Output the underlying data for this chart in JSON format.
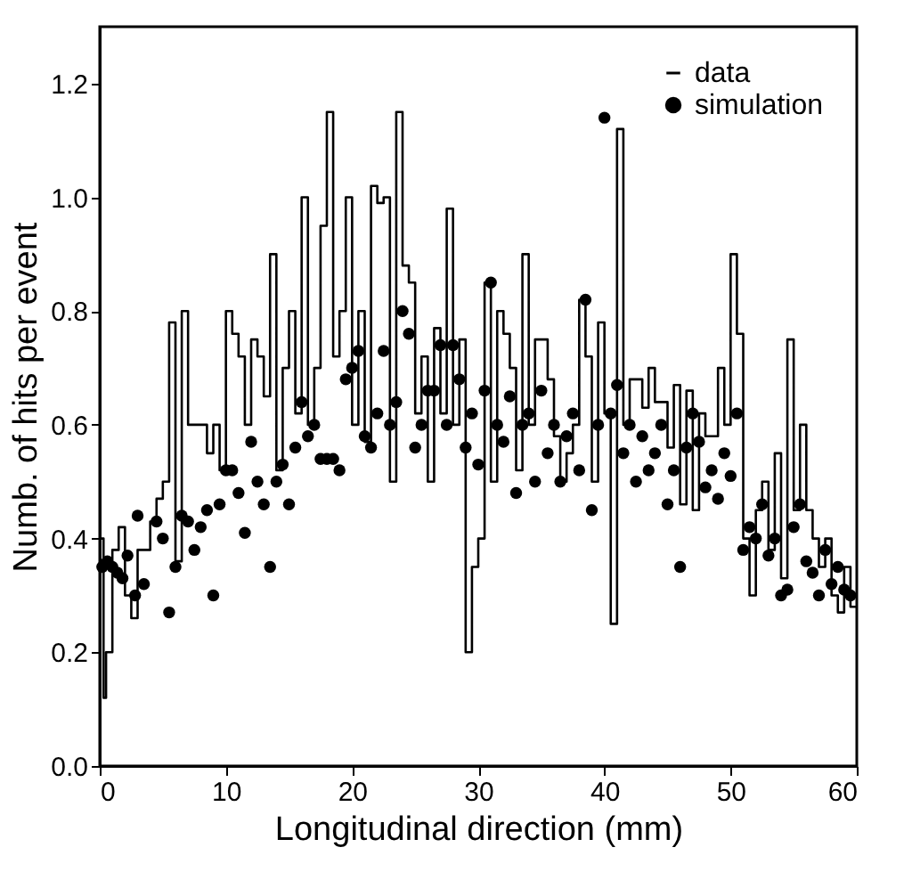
{
  "chart_data": {
    "type": "step",
    "xlabel": "Longitudinal direction (mm)",
    "ylabel": "Numb. of hits per event",
    "xlim": [
      0,
      60
    ],
    "xticks": [
      0,
      10,
      20,
      30,
      40,
      50,
      60
    ],
    "ylim": [
      0.0,
      1.3
    ],
    "yticks": [
      {
        "value": 0,
        "label": "0.0"
      },
      0.2,
      0.4,
      0.6,
      0.8,
      {
        "value": 1,
        "label": "1.0"
      },
      1.2
    ],
    "grid": false,
    "legend": "top right",
    "series": [
      {
        "name": "data",
        "color": "#000000",
        "line_style": "solid",
        "marker": "none",
        "x": [
          0,
          0.3,
          0.5,
          1,
          1.5,
          2,
          2.5,
          3,
          4,
          4.5,
          5,
          5.5,
          6,
          6.5,
          7,
          8.5,
          9,
          9.5,
          10,
          10.5,
          11,
          11.5,
          12,
          12.5,
          13,
          13.5,
          14,
          14.5,
          15,
          15.5,
          16,
          16.5,
          17,
          17.5,
          18,
          18.5,
          19,
          19.5,
          20,
          20.5,
          21,
          21.5,
          22,
          22.5,
          23,
          23.5,
          24,
          24.5,
          25,
          25.5,
          26,
          26.5,
          27,
          27.5,
          28,
          28.5,
          29,
          29.5,
          30,
          30.5,
          31,
          31.5,
          32,
          32.5,
          33,
          33.5,
          34,
          34.5,
          35,
          35.5,
          36,
          36.5,
          37,
          37.5,
          38,
          38.5,
          39,
          39.5,
          40,
          40.5,
          41,
          41.5,
          42,
          43,
          43.5,
          44,
          45,
          45.5,
          46,
          46.5,
          47,
          47.5,
          48,
          49,
          49.5,
          50,
          50.5,
          51,
          51.5,
          52,
          52.5,
          53,
          53.5,
          54,
          54.5,
          55,
          55.5,
          56,
          56.5,
          57,
          57.5,
          58,
          58.5,
          59,
          59.5,
          60
        ],
        "values": [
          0.4,
          0.12,
          0.2,
          0.38,
          0.42,
          0.3,
          0.26,
          0.38,
          0.43,
          0.47,
          0.5,
          0.78,
          0.36,
          0.8,
          0.6,
          0.55,
          0.6,
          0.52,
          0.8,
          0.76,
          0.72,
          0.6,
          0.75,
          0.72,
          0.65,
          0.9,
          0.52,
          0.7,
          0.8,
          0.62,
          1.0,
          0.6,
          0.7,
          0.95,
          1.15,
          0.72,
          0.8,
          1.0,
          0.6,
          0.8,
          0.57,
          1.02,
          0.99,
          1.0,
          0.5,
          1.15,
          0.88,
          0.85,
          0.62,
          0.72,
          0.5,
          0.77,
          0.62,
          0.98,
          0.6,
          0.75,
          0.2,
          0.35,
          0.4,
          0.85,
          0.5,
          0.8,
          0.76,
          0.7,
          0.52,
          0.9,
          0.6,
          0.75,
          0.75,
          0.68,
          0.58,
          0.5,
          0.55,
          0.6,
          0.82,
          0.72,
          0.5,
          0.78,
          0.62,
          0.25,
          1.12,
          0.6,
          0.68,
          0.63,
          0.7,
          0.64,
          0.56,
          0.67,
          0.46,
          0.66,
          0.45,
          0.62,
          0.58,
          0.7,
          0.6,
          0.9,
          0.76,
          0.4,
          0.3,
          0.45,
          0.5,
          0.38,
          0.55,
          0.33,
          0.75,
          0.45,
          0.6,
          0.45,
          0.4,
          0.35,
          0.4,
          0.3,
          0.27,
          0.35,
          0.28,
          0.28
        ]
      },
      {
        "name": "simulation",
        "type": "scatter",
        "color": "#000000",
        "marker": "circle",
        "x": [
          0.2,
          0.6,
          1,
          1.4,
          1.8,
          2.2,
          2.8,
          3,
          3.5,
          4.5,
          5,
          5.5,
          6,
          6.5,
          7,
          7.5,
          8,
          8.5,
          9,
          9.5,
          10,
          10.5,
          11,
          11.5,
          12,
          12.5,
          13,
          13.5,
          14,
          14.5,
          15,
          15.5,
          16,
          16.5,
          17,
          17.5,
          18,
          18.5,
          19,
          19.5,
          20,
          20.5,
          21,
          21.5,
          22,
          22.5,
          23,
          23.5,
          24,
          24.5,
          25,
          25.5,
          26,
          26.5,
          27,
          27.5,
          28,
          28.5,
          29,
          29.5,
          30,
          30.5,
          31,
          31.5,
          32,
          32.5,
          33,
          33.5,
          34,
          34.5,
          35,
          35.5,
          36,
          36.5,
          37,
          37.5,
          38,
          38.5,
          39,
          39.5,
          40,
          40.5,
          41,
          41.5,
          42,
          42.5,
          43,
          43.5,
          44,
          44.5,
          45,
          45.5,
          46,
          46.5,
          47,
          47.5,
          48,
          48.5,
          49,
          49.5,
          50,
          50.5,
          51,
          51.5,
          52,
          52.5,
          53,
          53.5,
          54,
          54.5,
          55,
          55.5,
          56,
          56.5,
          57,
          57.5,
          58,
          58.5,
          59,
          59.5
        ],
        "values": [
          0.35,
          0.36,
          0.35,
          0.34,
          0.33,
          0.37,
          0.3,
          0.44,
          0.32,
          0.43,
          0.4,
          0.27,
          0.35,
          0.44,
          0.43,
          0.38,
          0.42,
          0.45,
          0.3,
          0.46,
          0.52,
          0.52,
          0.48,
          0.41,
          0.57,
          0.5,
          0.46,
          0.35,
          0.5,
          0.53,
          0.46,
          0.56,
          0.64,
          0.58,
          0.6,
          0.54,
          0.54,
          0.54,
          0.52,
          0.68,
          0.7,
          0.73,
          0.58,
          0.56,
          0.62,
          0.73,
          0.6,
          0.64,
          0.8,
          0.76,
          0.56,
          0.6,
          0.66,
          0.66,
          0.74,
          0.6,
          0.74,
          0.68,
          0.56,
          0.62,
          0.53,
          0.66,
          0.85,
          0.6,
          0.57,
          0.65,
          0.48,
          0.6,
          0.62,
          0.5,
          0.66,
          0.55,
          0.6,
          0.5,
          0.58,
          0.62,
          0.52,
          0.82,
          0.45,
          0.6,
          1.14,
          0.62,
          0.67,
          0.55,
          0.6,
          0.5,
          0.58,
          0.52,
          0.55,
          0.6,
          0.46,
          0.52,
          0.35,
          0.56,
          0.62,
          0.57,
          0.49,
          0.52,
          0.47,
          0.55,
          0.51,
          0.62,
          0.38,
          0.42,
          0.4,
          0.46,
          0.37,
          0.4,
          0.3,
          0.31,
          0.42,
          0.46,
          0.36,
          0.34,
          0.3,
          0.38,
          0.32,
          0.35,
          0.31,
          0.3
        ]
      }
    ]
  }
}
